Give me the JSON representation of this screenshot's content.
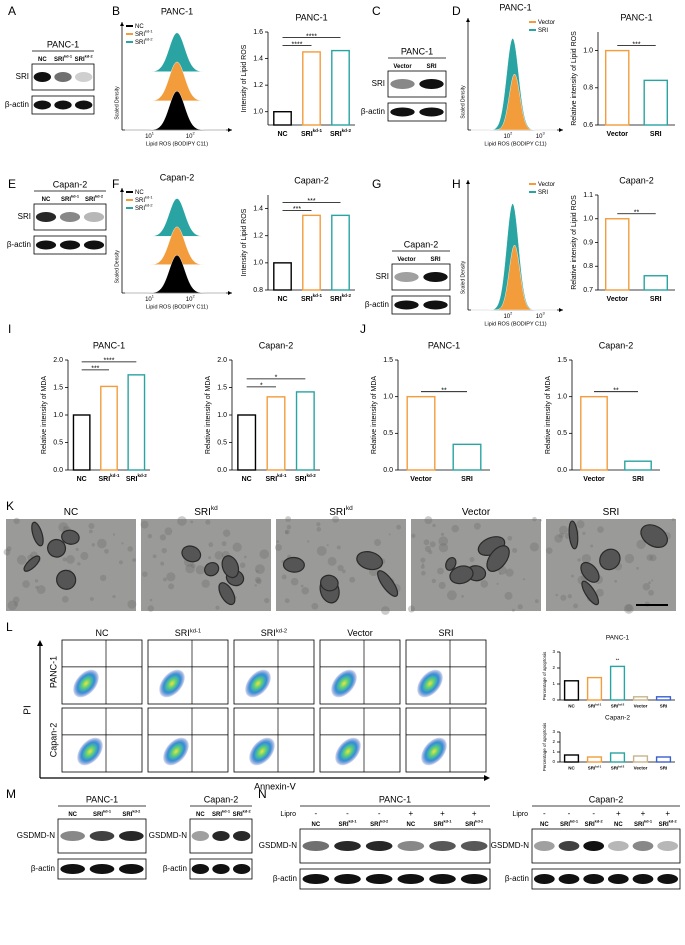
{
  "panel_labels": [
    "A",
    "B",
    "C",
    "D",
    "E",
    "F",
    "G",
    "H",
    "I",
    "J",
    "K",
    "L",
    "M",
    "N"
  ],
  "blots": {
    "A": {
      "title": "PANC-1",
      "lanes": [
        "NC",
        "SRI",
        "SRI"
      ],
      "lane_sups": [
        null,
        "kd-1",
        "kd-2"
      ],
      "rows": [
        "SRI",
        "β-actin"
      ]
    },
    "C": {
      "title": "PANC-1",
      "lanes": [
        "Vector",
        "SRI"
      ],
      "rows": [
        "SRI",
        "β-actin"
      ]
    },
    "E": {
      "title": "Capan-2",
      "lanes": [
        "NC",
        "SRI",
        "SRI"
      ],
      "lane_sups": [
        null,
        "kd-1",
        "kd-2"
      ],
      "rows": [
        "SRI",
        "β-actin"
      ]
    },
    "G": {
      "title": "Capan-2",
      "lanes": [
        "Vector",
        "SRI"
      ],
      "rows": [
        "SRI",
        "β-actin"
      ]
    },
    "M1": {
      "title": "PANC-1",
      "lanes": [
        "NC",
        "SRI",
        "SRI"
      ],
      "lane_sups": [
        null,
        "kd-1",
        "kd-2"
      ],
      "rows": [
        "GSDMD-N",
        "β-actin"
      ]
    },
    "M2": {
      "title": "Capan-2",
      "lanes": [
        "NC",
        "SRI",
        "SRI"
      ],
      "lane_sups": [
        null,
        "kd-1",
        "kd-2"
      ],
      "rows": [
        "GSDMD-N",
        "β-actin"
      ]
    },
    "N1": {
      "title": "PANC-1",
      "treatment_label": "Lipro",
      "treatment": [
        "-",
        "-",
        "-",
        "+",
        "+",
        "+"
      ],
      "lanes": [
        "NC",
        "SRI",
        "SRI",
        "NC",
        "SRI",
        "SRI"
      ],
      "lane_sups": [
        null,
        "kd-1",
        "kd-2",
        null,
        "kd-1",
        "kd-2"
      ],
      "rows": [
        "GSDMD-N",
        "β-actin"
      ]
    },
    "N2": {
      "title": "Capan-2",
      "treatment_label": "Lipro",
      "treatment": [
        "-",
        "-",
        "-",
        "+",
        "+",
        "+"
      ],
      "lanes": [
        "NC",
        "SRI",
        "SRI",
        "NC",
        "SRI",
        "SRI"
      ],
      "lane_sups": [
        null,
        "kd-1",
        "kd-2",
        null,
        "kd-1",
        "kd-2"
      ],
      "rows": [
        "GSDMD-N",
        "β-actin"
      ]
    }
  },
  "histograms": {
    "B": {
      "title": "PANC-1",
      "style": "stacked",
      "legend_position": "top-left",
      "legend": [
        "NC",
        "SRI",
        "SRI"
      ],
      "legend_sups": [
        null,
        "kd-1",
        "kd-2"
      ],
      "colors": [
        "#000000",
        "#f39c3c",
        "#2aa3a3"
      ],
      "ylabel": "Scaled Density",
      "xlabel": "Lipid ROS (BODIPY C11)",
      "xticks": [
        {
          "base": "10",
          "exp": "1"
        },
        {
          "base": "10",
          "exp": "2"
        }
      ]
    },
    "D": {
      "title": "PANC-1",
      "style": "overlaid",
      "legend_position": "top-right",
      "legend": [
        "Vector",
        "SRI"
      ],
      "colors": [
        "#f39c3c",
        "#2aa3a3"
      ],
      "ylabel": "Scaled Density",
      "xlabel": "Lipid ROS (BODIPY C11)",
      "xticks": [
        {
          "base": "10",
          "exp": "2"
        },
        {
          "base": "10",
          "exp": "3"
        }
      ]
    },
    "F": {
      "title": "Capan-2",
      "style": "stacked",
      "legend_position": "top-left",
      "legend": [
        "NC",
        "SRI",
        "SRI"
      ],
      "legend_sups": [
        null,
        "kd-1",
        "kd-2"
      ],
      "colors": [
        "#000000",
        "#f39c3c",
        "#2aa3a3"
      ],
      "ylabel": "Scaled Density",
      "xlabel": "Lipid ROS (BODIPY C11)",
      "xticks": [
        {
          "base": "10",
          "exp": "1"
        },
        {
          "base": "10",
          "exp": "2"
        }
      ]
    },
    "H": {
      "style": "overlaid",
      "legend_position": "top-right",
      "legend": [
        "Vector",
        "SRI"
      ],
      "colors": [
        "#f39c3c",
        "#2aa3a3"
      ],
      "ylabel": "Scaled Density",
      "xlabel": "Lipid ROS (BODIPY C11)",
      "xticks": [
        {
          "base": "10",
          "exp": "2"
        },
        {
          "base": "10",
          "exp": "3"
        }
      ]
    }
  },
  "em": {
    "titles": [
      "NC",
      "SRI",
      "SRI",
      "Vector",
      "SRI"
    ],
    "sups": [
      null,
      "kd",
      "kd",
      null,
      null
    ]
  },
  "flow": {
    "columns": [
      "NC",
      "SRI",
      "SRI",
      "Vector",
      "SRI"
    ],
    "column_sups": [
      null,
      "kd-1",
      "kd-2",
      null,
      null
    ],
    "rows": [
      "PANC-1",
      "Capan-2"
    ],
    "y_label": "PI",
    "x_label": "Annexin-Ⅴ"
  },
  "chart_data": [
    {
      "type": "bar",
      "title": "PANC-1",
      "ylabel": "Intensity of Lipid ROS",
      "categories": [
        "NC",
        "SRI",
        "SRI"
      ],
      "category_sups": [
        null,
        "kd-1",
        "kd-2"
      ],
      "values": [
        1.0,
        1.45,
        1.46
      ],
      "colors": [
        "#000000",
        "#f39c3c",
        "#2aa3a3"
      ],
      "ylim": [
        0.9,
        1.6
      ],
      "yticks": [
        {
          "value": 1,
          "label": "1.0"
        },
        1.2,
        1.4,
        1.6
      ],
      "annotations": [
        {
          "text": "****",
          "categories": [
            0,
            2
          ]
        },
        {
          "text": "****",
          "categories": [
            0,
            1
          ]
        }
      ]
    },
    {
      "type": "bar",
      "title": "PANC-1",
      "ylabel": "Relative intensity of Lipid ROS",
      "categories": [
        "Vector",
        "SRI"
      ],
      "values": [
        1.0,
        0.84
      ],
      "colors": [
        "#f39c3c",
        "#2aa3a3"
      ],
      "ylim": [
        0.6,
        1.1
      ],
      "yticks": [
        0.6,
        0.8,
        {
          "value": 1,
          "label": "1.0"
        }
      ],
      "annotations": [
        {
          "text": "***",
          "categories": [
            0,
            1
          ]
        }
      ]
    },
    {
      "type": "bar",
      "title": "Capan-2",
      "ylabel": "Intensity of Lipid ROS",
      "categories": [
        "NC",
        "SRI",
        "SRI"
      ],
      "category_sups": [
        null,
        "kd-1",
        "kd-2"
      ],
      "values": [
        1.0,
        1.35,
        1.35
      ],
      "colors": [
        "#000000",
        "#f39c3c",
        "#2aa3a3"
      ],
      "ylim": [
        0.8,
        1.5
      ],
      "yticks": [
        0.8,
        {
          "value": 1,
          "label": "1.0"
        },
        1.2,
        1.4
      ],
      "annotations": [
        {
          "text": "***",
          "categories": [
            0,
            2
          ]
        },
        {
          "text": "***",
          "categories": [
            0,
            1
          ]
        }
      ]
    },
    {
      "type": "bar",
      "title": "Capan-2",
      "ylabel": "Relative intensity of Lipid ROS",
      "categories": [
        "Vector",
        "SRI"
      ],
      "values": [
        1.0,
        0.76
      ],
      "colors": [
        "#f39c3c",
        "#2aa3a3"
      ],
      "ylim": [
        0.7,
        1.1
      ],
      "yticks": [
        0.7,
        0.8,
        0.9,
        {
          "value": 1,
          "label": "1.0"
        },
        1.1
      ],
      "annotations": [
        {
          "text": "**",
          "categories": [
            0,
            1
          ]
        }
      ]
    },
    {
      "type": "bar",
      "title": "PANC-1",
      "ylabel": "Relative intensity of MDA",
      "categories": [
        "NC",
        "SRI",
        "SRI"
      ],
      "category_sups": [
        null,
        "kd-1",
        "kd-2"
      ],
      "values": [
        1.0,
        1.52,
        1.73
      ],
      "colors": [
        "#000000",
        "#f39c3c",
        "#2aa3a3"
      ],
      "ylim": [
        0,
        2
      ],
      "yticks": [
        {
          "value": 0,
          "label": "0.0"
        },
        0.5,
        {
          "value": 1,
          "label": "1.0"
        },
        1.5,
        {
          "value": 2,
          "label": "2.0"
        }
      ],
      "annotations": [
        {
          "text": "****",
          "categories": [
            0,
            2
          ]
        },
        {
          "text": "***",
          "categories": [
            0,
            1
          ]
        }
      ]
    },
    {
      "type": "bar",
      "title": "Capan-2",
      "ylabel": "Relative intensity of MDA",
      "categories": [
        "NC",
        "SRI",
        "SRI"
      ],
      "category_sups": [
        null,
        "kd-1",
        "kd-2"
      ],
      "values": [
        1.0,
        1.33,
        1.42
      ],
      "colors": [
        "#000000",
        "#f39c3c",
        "#2aa3a3"
      ],
      "ylim": [
        0,
        2
      ],
      "yticks": [
        {
          "value": 0,
          "label": "0.0"
        },
        0.5,
        {
          "value": 1,
          "label": "1.0"
        },
        1.5,
        {
          "value": 2,
          "label": "2.0"
        }
      ],
      "annotations": [
        {
          "text": "*",
          "categories": [
            0,
            2
          ]
        },
        {
          "text": "*",
          "categories": [
            0,
            1
          ]
        }
      ]
    },
    {
      "type": "bar",
      "title": "PANC-1",
      "ylabel": "Relative intensity of MDA",
      "categories": [
        "Vector",
        "SRI"
      ],
      "values": [
        1.0,
        0.35
      ],
      "colors": [
        "#f39c3c",
        "#2aa3a3"
      ],
      "ylim": [
        0,
        1.5
      ],
      "yticks": [
        {
          "value": 0,
          "label": "0.0"
        },
        0.5,
        {
          "value": 1,
          "label": "1.0"
        },
        1.5
      ],
      "annotations": [
        {
          "text": "**",
          "categories": [
            0,
            1
          ]
        }
      ]
    },
    {
      "type": "bar",
      "title": "Capan-2",
      "ylabel": "Relative intensity of MDA",
      "categories": [
        "Vector",
        "SRI"
      ],
      "values": [
        1.0,
        0.12
      ],
      "colors": [
        "#f39c3c",
        "#2aa3a3"
      ],
      "ylim": [
        0,
        1.5
      ],
      "yticks": [
        {
          "value": 0,
          "label": "0.0"
        },
        0.5,
        {
          "value": 1,
          "label": "1.0"
        },
        1.5
      ],
      "annotations": [
        {
          "text": "**",
          "categories": [
            0,
            1
          ]
        }
      ]
    },
    {
      "type": "bar",
      "title": "PANC-1",
      "ylabel": "Percentage of apoptosis",
      "categories": [
        "NC",
        "SRI",
        "SRI",
        "Vector",
        "SRI"
      ],
      "category_sups": [
        null,
        "kd-1",
        "kd-2",
        null,
        null
      ],
      "values": [
        1.2,
        1.4,
        2.1,
        0.2,
        0.2
      ],
      "colors": [
        "#000000",
        "#f39c3c",
        "#2aa3a3",
        "#c8b48c",
        "#3a5fcd"
      ],
      "ylim": [
        0,
        3
      ],
      "yticks": [
        0,
        1,
        2,
        3
      ],
      "annotations": [
        {
          "text": "**",
          "categories": [
            2,
            2
          ]
        }
      ]
    },
    {
      "type": "bar",
      "title": "Capan-2",
      "ylabel": "Percentage of apoptosis",
      "categories": [
        "NC",
        "SRI",
        "SRI",
        "Vector",
        "SRI"
      ],
      "category_sups": [
        null,
        "kd-1",
        "kd-2",
        null,
        null
      ],
      "values": [
        0.7,
        0.5,
        0.9,
        0.6,
        0.5
      ],
      "colors": [
        "#000000",
        "#f39c3c",
        "#2aa3a3",
        "#c8b48c",
        "#3a5fcd"
      ],
      "ylim": [
        0,
        3
      ],
      "yticks": [
        0,
        1,
        2,
        3
      ]
    }
  ]
}
